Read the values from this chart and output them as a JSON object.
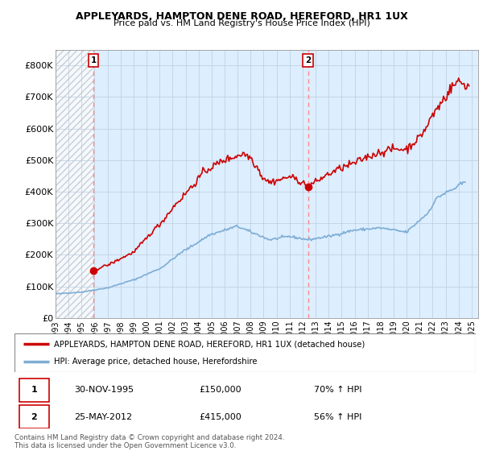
{
  "title": "APPLEYARDS, HAMPTON DENE ROAD, HEREFORD, HR1 1UX",
  "subtitle": "Price paid vs. HM Land Registry's House Price Index (HPI)",
  "sale1_price": 150000,
  "sale2_price": 415000,
  "ylim_min": 0,
  "ylim_max": 850000,
  "xlim_min": 1993.0,
  "xlim_max": 2025.5,
  "yticks": [
    0,
    100000,
    200000,
    300000,
    400000,
    500000,
    600000,
    700000,
    800000
  ],
  "ytick_labels": [
    "£0",
    "£100K",
    "£200K",
    "£300K",
    "£400K",
    "£500K",
    "£600K",
    "£700K",
    "£800K"
  ],
  "xticks": [
    1993,
    1994,
    1995,
    1996,
    1997,
    1998,
    1999,
    2000,
    2001,
    2002,
    2003,
    2004,
    2005,
    2006,
    2007,
    2008,
    2009,
    2010,
    2011,
    2012,
    2013,
    2014,
    2015,
    2016,
    2017,
    2018,
    2019,
    2020,
    2021,
    2022,
    2023,
    2024,
    2025
  ],
  "property_line_color": "#cc0000",
  "hpi_line_color": "#7dadd4",
  "vline_color": "#ff8888",
  "annotation_box_color": "#cc0000",
  "chart_bg_color": "#ddeeff",
  "hatch_region_color": "#e8e8e8",
  "legend_label1": "APPLEYARDS, HAMPTON DENE ROAD, HEREFORD, HR1 1UX (detached house)",
  "legend_label2": "HPI: Average price, detached house, Herefordshire",
  "table_row1": [
    "1",
    "30-NOV-1995",
    "£150,000",
    "70% ↑ HPI"
  ],
  "table_row2": [
    "2",
    "25-MAY-2012",
    "£415,000",
    "56% ↑ HPI"
  ],
  "footer": "Contains HM Land Registry data © Crown copyright and database right 2024.\nThis data is licensed under the Open Government Licence v3.0.",
  "sale1_x": 1995.917,
  "sale2_x": 2012.417
}
